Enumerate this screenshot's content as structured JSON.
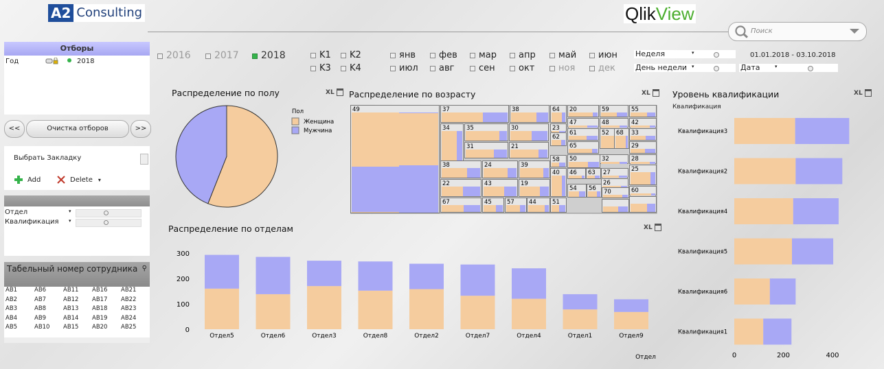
{
  "header": {
    "logo_a2": "A2",
    "logo_consulting": "Consulting",
    "logo_qlik": "Qlik",
    "logo_view": "View",
    "search_placeholder": "Поиск"
  },
  "sidebar": {
    "current_selections_title": "Отборы",
    "selection_field": "Год",
    "selection_value": "2018",
    "nav_back": "<<",
    "nav_forward": ">>",
    "clear_label": "Очистка отборов",
    "bookmark_select": "Выбрать Закладку",
    "add_label": "Add",
    "delete_label": "Delete",
    "filters": [
      {
        "label": "Отдел"
      },
      {
        "label": "Квалификация"
      }
    ],
    "table_title": "Табельный номер сотрудника",
    "table_items": [
      "AB1",
      "AB6",
      "AB11",
      "AB16",
      "AB21",
      "AB2",
      "AB7",
      "AB12",
      "AB17",
      "AB22",
      "AB3",
      "AB8",
      "AB13",
      "AB18",
      "AB23",
      "AB4",
      "AB9",
      "AB14",
      "AB19",
      "AB24",
      "AB5",
      "AB10",
      "AB15",
      "AB20",
      "AB25"
    ]
  },
  "filters_bar": {
    "years": [
      {
        "label": "2016",
        "selected": false
      },
      {
        "label": "2017",
        "selected": false
      },
      {
        "label": "2018",
        "selected": true
      }
    ],
    "quarters": [
      "K1",
      "K2",
      "K3",
      "K4"
    ],
    "months_row1": [
      "янв",
      "фев",
      "мар",
      "апр",
      "май",
      "июн"
    ],
    "months_row2": [
      "июл",
      "авг",
      "сен",
      "окт",
      "ноя",
      "дек"
    ],
    "week_label": "Неделя",
    "weekday_label": "День недели",
    "date_label": "Дата",
    "date_range": "01.01.2018 - 03.10.2018"
  },
  "colors": {
    "female": "#f5cc9e",
    "male": "#a8a8f5",
    "accent_green": "#34b34a"
  },
  "gender_chart": {
    "title": "Распределение по полу",
    "xl": "XL",
    "legend_title": "Пол",
    "legend": [
      "Женщина",
      "Мужчина"
    ]
  },
  "age_chart": {
    "title": "Распределение по возрасту",
    "xl": "XL"
  },
  "dept_chart": {
    "title": "Распределение по отделам",
    "xl": "XL"
  },
  "qual_chart": {
    "title": "Уровень квалификации",
    "xl": "XL",
    "dim_label": "Квалификация"
  },
  "chart_data": [
    {
      "type": "pie",
      "title": "Распределение по полу",
      "legend_title": "Пол",
      "labels": [
        "Женщина",
        "Мужчина"
      ],
      "values": [
        56,
        44
      ]
    },
    {
      "type": "treemap",
      "title": "Распределение по возрасту",
      "labels": [
        "49",
        "37",
        "38",
        "64",
        "20",
        "59",
        "55",
        "34",
        "35",
        "30",
        "47",
        "48",
        "42",
        "23",
        "61",
        "62",
        "52",
        "68",
        "33",
        "31",
        "21",
        "65",
        "29",
        "38",
        "24",
        "39",
        "58",
        "50",
        "32",
        "28",
        "22",
        "43",
        "19",
        "40",
        "46",
        "63",
        "27",
        "26",
        "25",
        "67",
        "45",
        "57",
        "44",
        "51",
        "54",
        "56",
        "70",
        "60"
      ]
    },
    {
      "type": "stacked-bar",
      "title": "Распределение по отделам",
      "xlabel": "Отдел",
      "categories": [
        "Отдел5",
        "Отдел6",
        "Отдел3",
        "Отдел8",
        "Отдел2",
        "Отдел7",
        "Отдел4",
        "Отдел1",
        "Отдел9"
      ],
      "series": [
        {
          "name": "Женщина",
          "values": [
            160,
            138,
            170,
            152,
            158,
            132,
            120,
            78,
            68
          ]
        },
        {
          "name": "Мужчина",
          "values": [
            133,
            147,
            100,
            115,
            100,
            123,
            120,
            60,
            50
          ]
        }
      ],
      "yticks": [
        0,
        100,
        200,
        300
      ],
      "ylim": [
        0,
        300
      ]
    },
    {
      "type": "stacked-barh",
      "title": "Уровень квалификации",
      "ylabel": "Квалификация",
      "categories": [
        "Квалификация3",
        "Квалификация2",
        "Квалификация4",
        "Квалификация5",
        "Квалификация6",
        "Квалификация1"
      ],
      "series": [
        {
          "name": "Женщина",
          "values": [
            248,
            250,
            240,
            235,
            145,
            118
          ]
        },
        {
          "name": "Мужчина",
          "values": [
            220,
            190,
            185,
            168,
            105,
            115
          ]
        }
      ],
      "xticks": [
        0,
        200,
        400
      ],
      "xlim": [
        0,
        460
      ]
    }
  ]
}
